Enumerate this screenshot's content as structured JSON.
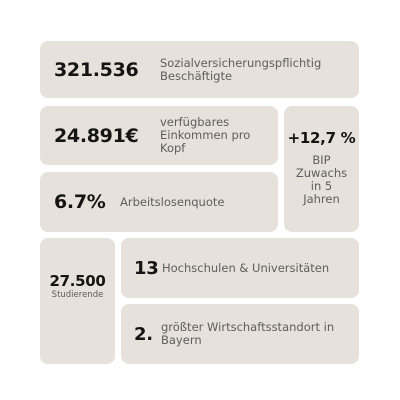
{
  "cards": {
    "employees": {
      "value": "321.536",
      "label_line1": "Sozialversicherungspflichtig",
      "label_line2": "Beschäftigte"
    },
    "income": {
      "value": "24.891€",
      "label": "verfügbares Einkommen pro Kopf"
    },
    "gdp": {
      "value": "+12,7 %",
      "label_line1": "BIP",
      "label_line2": "Zuwachs",
      "label_line3": "in 5",
      "label_line4": "Jahren"
    },
    "unemployment": {
      "value": "6.7%",
      "label": "Arbeitslosenquote"
    },
    "students": {
      "value": "27.500",
      "label": "Studierende"
    },
    "universities": {
      "value": "13",
      "label": "Hochschulen & Universitäten"
    },
    "business_location": {
      "value": "2.",
      "label": "größter Wirtschaftsstandort in Bayern"
    }
  }
}
